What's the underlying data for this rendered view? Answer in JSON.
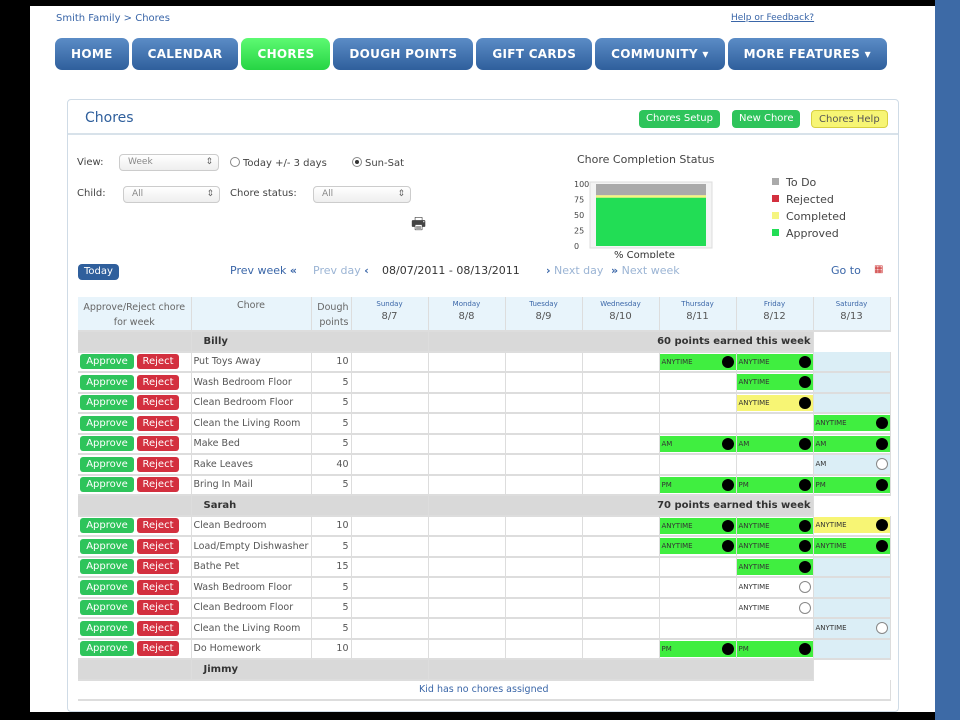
{
  "breadcrumb": "Smith Family > Chores",
  "help_link": "Help or Feedback?",
  "nav": [
    {
      "label": "HOME"
    },
    {
      "label": "CALENDAR"
    },
    {
      "label": "CHORES",
      "active": true
    },
    {
      "label": "DOUGH POINTS"
    },
    {
      "label": "GIFT CARDS"
    },
    {
      "label": "COMMUNITY ▾"
    },
    {
      "label": "MORE FEATURES ▾"
    }
  ],
  "panel": {
    "title": "Chores",
    "buttons": {
      "setup": "Chores Setup",
      "new": "New Chore",
      "help": "Chores Help"
    }
  },
  "filters": {
    "view_label": "View:",
    "view_value": "Week",
    "radio1": "Today +/- 3 days",
    "radio2": "Sun-Sat",
    "radio_selected": "Sun-Sat",
    "child_label": "Child:",
    "child_value": "All",
    "status_label": "Chore status:",
    "status_value": "All"
  },
  "icons": {
    "print": "printer-icon",
    "calendar": "calendar-icon"
  },
  "chart_data": {
    "type": "bar",
    "stacked": true,
    "title": "Chore Completion Status",
    "xlabel": "% Complete",
    "categories": [
      "% Complete"
    ],
    "ylim": [
      0,
      100
    ],
    "yticks": [
      0,
      25,
      50,
      75,
      100
    ],
    "series": [
      {
        "name": "Approved",
        "values": [
          78
        ],
        "color": "#22dd55"
      },
      {
        "name": "Completed",
        "values": [
          4
        ],
        "color": "#f5f580"
      },
      {
        "name": "Rejected",
        "values": [
          0
        ],
        "color": "#d3303f"
      },
      {
        "name": "To Do",
        "values": [
          18
        ],
        "color": "#aaaaaa"
      }
    ],
    "legend": [
      "To Do",
      "Rejected",
      "Completed",
      "Approved"
    ],
    "legend_position": "right"
  },
  "weeknav": {
    "today": "Today",
    "prev_week": "Prev week",
    "prev_day": "Prev day",
    "range": "08/07/2011 - 08/13/2011",
    "next_day": "Next day",
    "next_week": "Next week",
    "goto": "Go to"
  },
  "table": {
    "col_approve": "Approve/Reject chore for week",
    "col_chore": "Chore",
    "col_points": "Dough points",
    "days": [
      {
        "name": "Sunday",
        "date": "8/7"
      },
      {
        "name": "Monday",
        "date": "8/8"
      },
      {
        "name": "Tuesday",
        "date": "8/9"
      },
      {
        "name": "Wednesday",
        "date": "8/10"
      },
      {
        "name": "Thursday",
        "date": "8/11"
      },
      {
        "name": "Friday",
        "date": "8/12"
      },
      {
        "name": "Saturday",
        "date": "8/13"
      }
    ],
    "approve": "Approve",
    "reject": "Reject",
    "kids": [
      {
        "name": "Billy",
        "summary": "60 points earned this week",
        "chores": [
          {
            "name": "Put Toys Away",
            "points": 10,
            "cells": {
              "4": [
                "ANYTIME",
                "approved",
                true
              ],
              "5": [
                "ANYTIME",
                "approved",
                true
              ]
            }
          },
          {
            "name": "Wash Bedroom Floor",
            "points": 5,
            "cells": {
              "5": [
                "ANYTIME",
                "approved",
                true
              ]
            }
          },
          {
            "name": "Clean Bedroom Floor",
            "points": 5,
            "cells": {
              "5": [
                "ANYTIME",
                "completed",
                true
              ]
            }
          },
          {
            "name": "Clean the Living Room",
            "points": 5,
            "cells": {
              "6": [
                "ANYTIME",
                "approved",
                true
              ]
            }
          },
          {
            "name": "Make Bed",
            "points": 5,
            "cells": {
              "4": [
                "AM",
                "approved",
                true
              ],
              "5": [
                "AM",
                "approved",
                true
              ],
              "6": [
                "AM",
                "approved",
                true
              ]
            }
          },
          {
            "name": "Rake Leaves",
            "points": 40,
            "cells": {
              "6": [
                "AM",
                "todo",
                false
              ]
            }
          },
          {
            "name": "Bring In Mail",
            "points": 5,
            "cells": {
              "4": [
                "PM",
                "approved",
                true
              ],
              "5": [
                "PM",
                "approved",
                true
              ],
              "6": [
                "PM",
                "approved",
                true
              ]
            }
          }
        ]
      },
      {
        "name": "Sarah",
        "summary": "70 points earned this week",
        "chores": [
          {
            "name": "Clean Bedroom",
            "points": 10,
            "cells": {
              "4": [
                "ANYTIME",
                "approved",
                true
              ],
              "5": [
                "ANYTIME",
                "approved",
                true
              ],
              "6": [
                "ANYTIME",
                "completed",
                true
              ]
            }
          },
          {
            "name": "Load/Empty Dishwasher",
            "points": 5,
            "cells": {
              "4": [
                "ANYTIME",
                "approved",
                true
              ],
              "5": [
                "ANYTIME",
                "approved",
                true
              ],
              "6": [
                "ANYTIME",
                "approved",
                true
              ]
            }
          },
          {
            "name": "Bathe Pet",
            "points": 15,
            "cells": {
              "5": [
                "ANYTIME",
                "approved",
                true
              ]
            }
          },
          {
            "name": "Wash Bedroom Floor",
            "points": 5,
            "cells": {
              "5": [
                "ANYTIME",
                "todo",
                false
              ]
            }
          },
          {
            "name": "Clean Bedroom Floor",
            "points": 5,
            "cells": {
              "5": [
                "ANYTIME",
                "todo",
                false
              ]
            }
          },
          {
            "name": "Clean the Living Room",
            "points": 5,
            "cells": {
              "6": [
                "ANYTIME",
                "todo",
                false
              ]
            }
          },
          {
            "name": "Do Homework",
            "points": 10,
            "cells": {
              "4": [
                "PM",
                "approved",
                true
              ],
              "5": [
                "PM",
                "approved",
                true
              ]
            }
          }
        ]
      },
      {
        "name": "Jimmy",
        "summary": "",
        "chores": [],
        "empty": "Kid has no chores assigned"
      }
    ]
  }
}
